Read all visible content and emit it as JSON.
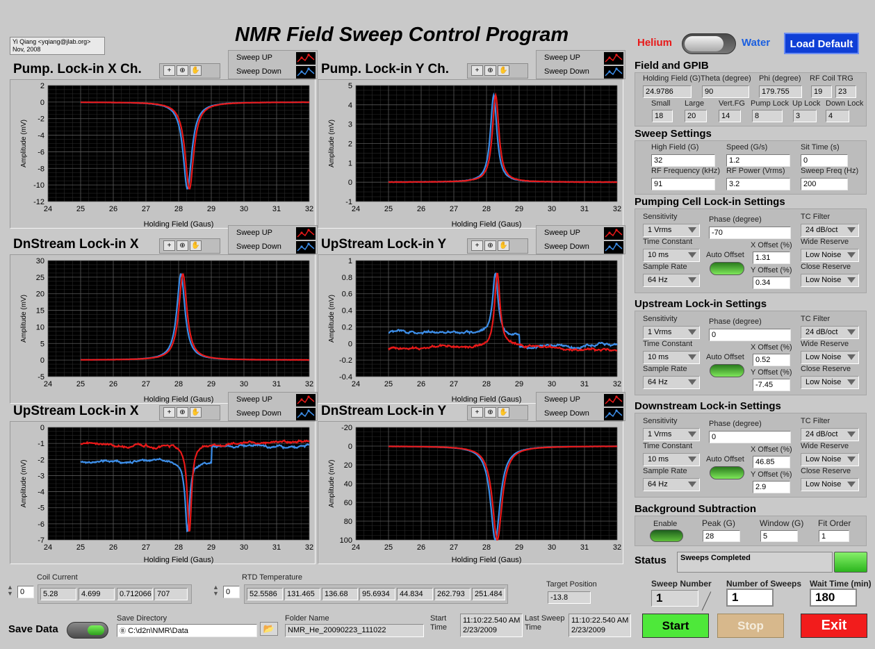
{
  "app": {
    "title": "NMR Field Sweep Control Program",
    "author": "Yi Qiang <yqiang@jlab.org>",
    "date": "Nov, 2008"
  },
  "mode": {
    "left_label": "Helium",
    "right_label": "Water",
    "load_default": "Load Default"
  },
  "graph_common": {
    "sweep_up": "Sweep UP",
    "sweep_down": "Sweep Down",
    "xlabel": "Holding Field (Gaus)",
    "ylabel": "Amplitude (mV)",
    "colors": {
      "up": "#e81919",
      "down": "#3d8ee8"
    }
  },
  "graphs": {
    "g1": {
      "title": "Pump. Lock-in X Ch."
    },
    "g2": {
      "title": "Pump. Lock-in Y Ch."
    },
    "g3": {
      "title": "DnStream Lock-in X"
    },
    "g4": {
      "title": "UpStream Lock-in Y"
    },
    "g5": {
      "title": "UpStream Lock-in X"
    },
    "g6": {
      "title": "DnStream Lock-in Y"
    }
  },
  "chart_data": [
    {
      "type": "line",
      "title": "Pump. Lock-in X Ch.",
      "xlabel": "Holding Field (Gaus)",
      "ylabel": "Amplitude (mV)",
      "xlim": [
        24,
        32
      ],
      "ylim": [
        -12,
        2
      ],
      "xticks": [
        24,
        25,
        26,
        27,
        28,
        29,
        30,
        31,
        32
      ],
      "yticks": [
        2,
        0,
        -2,
        -4,
        -6,
        -8,
        -10,
        -12
      ],
      "shape": "lorentzian",
      "baseline": 0,
      "peak_x": 28.3,
      "peak": -10.5,
      "width": 0.16,
      "noise": 0.03,
      "x_start": 25,
      "series": [
        {
          "name": "Sweep UP",
          "color": "#e81919"
        },
        {
          "name": "Sweep Down",
          "color": "#3d8ee8"
        }
      ]
    },
    {
      "type": "line",
      "title": "Pump. Lock-in Y Ch.",
      "xlabel": "Holding Field (Gaus)",
      "ylabel": "Amplitude (mV)",
      "xlim": [
        24,
        32
      ],
      "ylim": [
        -1,
        5
      ],
      "xticks": [
        24,
        25,
        26,
        27,
        28,
        29,
        30,
        31,
        32
      ],
      "yticks": [
        5,
        4,
        3,
        2,
        1,
        0,
        -1
      ],
      "shape": "lorentzian",
      "baseline": 0,
      "peak_x": 28.25,
      "peak": 4.5,
      "width": 0.12,
      "noise": 0.02,
      "x_start": 25,
      "series": [
        {
          "name": "Sweep UP",
          "color": "#e81919"
        },
        {
          "name": "Sweep Down",
          "color": "#3d8ee8"
        }
      ]
    },
    {
      "type": "line",
      "title": "DnStream Lock-in X",
      "xlabel": "Holding Field (Gaus)",
      "ylabel": "Amplitude (mV)",
      "xlim": [
        24,
        32
      ],
      "ylim": [
        -5,
        30
      ],
      "xticks": [
        24,
        25,
        26,
        27,
        28,
        29,
        30,
        31,
        32
      ],
      "yticks": [
        30,
        25,
        20,
        15,
        10,
        5,
        0,
        -5
      ],
      "shape": "lorentzian",
      "baseline": 0,
      "peak_x": 28.1,
      "peak": 26,
      "width": 0.15,
      "noise": 0.05,
      "x_start": 25,
      "series": [
        {
          "name": "Sweep UP",
          "color": "#e81919"
        },
        {
          "name": "Sweep Down",
          "color": "#3d8ee8"
        }
      ]
    },
    {
      "type": "line",
      "title": "UpStream Lock-in Y",
      "xlabel": "Holding Field (Gaus)",
      "ylabel": "Amplitude (mV)",
      "xlim": [
        24,
        32
      ],
      "ylim": [
        -0.4,
        1
      ],
      "xticks": [
        24,
        25,
        26,
        27,
        28,
        29,
        30,
        31,
        32
      ],
      "yticks": [
        1,
        0.8,
        0.6,
        0.4,
        0.2,
        0,
        -0.2,
        -0.4
      ],
      "shape": "noisy",
      "baseline_up": -0.05,
      "baseline_down": 0.12,
      "peak_x": 28.3,
      "peak": 0.85,
      "width": 0.1,
      "noise": 0.05,
      "x_start": 25,
      "series": [
        {
          "name": "Sweep UP",
          "color": "#e81919"
        },
        {
          "name": "Sweep Down",
          "color": "#3d8ee8"
        }
      ]
    },
    {
      "type": "line",
      "title": "UpStream Lock-in X",
      "xlabel": "Holding Field (Gaus)",
      "ylabel": "Amplitude (mV)",
      "xlim": [
        24,
        32
      ],
      "ylim": [
        -7,
        0
      ],
      "xticks": [
        24,
        25,
        26,
        27,
        28,
        29,
        30,
        31,
        32
      ],
      "yticks": [
        0,
        -1,
        -2,
        -3,
        -4,
        -5,
        -6,
        -7
      ],
      "shape": "noisy",
      "baseline_up": -1.0,
      "baseline_down": -2.2,
      "peak_x": 28.3,
      "peak": -6.5,
      "width": 0.08,
      "noise": 0.25,
      "x_start": 25,
      "series": [
        {
          "name": "Sweep UP",
          "color": "#e81919"
        },
        {
          "name": "Sweep Down",
          "color": "#3d8ee8"
        }
      ]
    },
    {
      "type": "line",
      "title": "DnStream Lock-in Y",
      "xlabel": "Holding Field (Gaus)",
      "ylabel": "Amplitude (mV)",
      "xlim": [
        24,
        32
      ],
      "ylim": [
        100,
        -20
      ],
      "xticks": [
        24,
        25,
        26,
        27,
        28,
        29,
        30,
        31,
        32
      ],
      "yticks": [
        -20,
        0,
        20,
        40,
        60,
        80,
        100
      ],
      "shape": "lorentzian",
      "baseline": 0,
      "peak_x": 28.3,
      "peak": 100,
      "width": 0.18,
      "noise": 0.2,
      "x_start": 25,
      "series": [
        {
          "name": "Sweep UP",
          "color": "#e81919"
        },
        {
          "name": "Sweep Down",
          "color": "#3d8ee8"
        }
      ]
    }
  ],
  "field_gpib": {
    "title": "Field and GPIB",
    "holding_field_label": "Holding Field (G)",
    "holding_field": "24.9786",
    "theta_label": "Theta (degree)",
    "theta": "90",
    "phi_label": "Phi (degree)",
    "phi": "179.755",
    "rf_coil_label": "RF Coil TRG",
    "rf_coil_1": "19",
    "rf_coil_2": "23",
    "small_label": "Small",
    "small": "18",
    "large_label": "Large",
    "large": "20",
    "vertfg_label": "Vert.FG",
    "vertfg": "14",
    "pumplock_label": "Pump Lock",
    "pumplock": "8",
    "uplock_label": "Up Lock",
    "uplock": "3",
    "downlock_label": "Down Lock",
    "downlock": "4"
  },
  "sweep": {
    "title": "Sweep Settings",
    "high_field_label": "High Field (G)",
    "high_field": "32",
    "speed_label": "Speed (G/s)",
    "speed": "1.2",
    "sit_label": "Sit Time (s)",
    "sit": "0",
    "rf_freq_label": "RF Frequency (kHz)",
    "rf_freq": "91",
    "rf_power_label": "RF Power (Vrms)",
    "rf_power": "3.2",
    "sweep_freq_label": "Sweep Freq (Hz)",
    "sweep_freq": "200"
  },
  "lockin_labels": {
    "sensitivity": "Sensitivity",
    "time_constant": "Time Constant",
    "sample_rate": "Sample Rate",
    "phase": "Phase (degree)",
    "auto_offset": "Auto Offset",
    "x_offset": "X Offset (%)",
    "y_offset": "Y Offset (%)",
    "tc_filter": "TC Filter",
    "wide_reserve": "Wide Reserve",
    "close_reserve": "Close Reserve"
  },
  "pump_lockin": {
    "title": "Pumping Cell Lock-in Settings",
    "sensitivity": "1 Vrms",
    "time_constant": "10 ms",
    "sample_rate": "64 Hz",
    "phase": "-70",
    "x_offset": "1.31",
    "y_offset": "0.34",
    "tc_filter": "24 dB/oct",
    "wide_reserve": "Low Noise",
    "close_reserve": "Low Noise"
  },
  "up_lockin": {
    "title": "Upstream Lock-in Settings",
    "sensitivity": "1 Vrms",
    "time_constant": "10 ms",
    "sample_rate": "64 Hz",
    "phase": "0",
    "x_offset": "0.52",
    "y_offset": "-7.45",
    "tc_filter": "24 dB/oct",
    "wide_reserve": "Low Noise",
    "close_reserve": "Low Noise"
  },
  "down_lockin": {
    "title": "Downstream Lock-in Settings",
    "sensitivity": "1 Vrms",
    "time_constant": "10 ms",
    "sample_rate": "64 Hz",
    "phase": "0",
    "x_offset": "46.85",
    "y_offset": "2.9",
    "tc_filter": "24 dB/oct",
    "wide_reserve": "Low Noise",
    "close_reserve": "Low Noise"
  },
  "background": {
    "title": "Background Subtraction",
    "enable_label": "Enable",
    "peak_label": "Peak (G)",
    "peak": "28",
    "window_label": "Window (G)",
    "window": "5",
    "fit_label": "Fit Order",
    "fit": "1"
  },
  "status": {
    "label": "Status",
    "text": "Sweeps Completed"
  },
  "counters": {
    "sweep_number_label": "Sweep Number",
    "sweep_number": "1",
    "num_sweeps_label": "Number of Sweeps",
    "num_sweeps": "1",
    "wait_label": "Wait Time (min)",
    "wait": "180"
  },
  "buttons": {
    "start": "Start",
    "stop": "Stop",
    "exit": "Exit"
  },
  "coil": {
    "label": "Coil Current",
    "index": "0",
    "values": [
      "5.28",
      "4.699",
      "0.712066",
      "707"
    ]
  },
  "rtd": {
    "label": "RTD Temperature",
    "index": "0",
    "values": [
      "52.5586",
      "131.465",
      "136.68",
      "95.6934",
      "44.834",
      "262.793",
      "251.484"
    ]
  },
  "target": {
    "label": "Target Position",
    "value": "-13.8"
  },
  "save": {
    "label": "Save Data",
    "dir_label": "Save Directory",
    "dir": "C:\\d2n\\NMR\\Data",
    "folder_label": "Folder Name",
    "folder": "NMR_He_20090223_111022",
    "start_label": "Start\nTime",
    "start_time": "11:10:22.540 AM",
    "start_date": "2/23/2009",
    "last_label": "Last Sweep\nTime",
    "last_time": "11:10:22.540 AM",
    "last_date": "2/23/2009"
  }
}
